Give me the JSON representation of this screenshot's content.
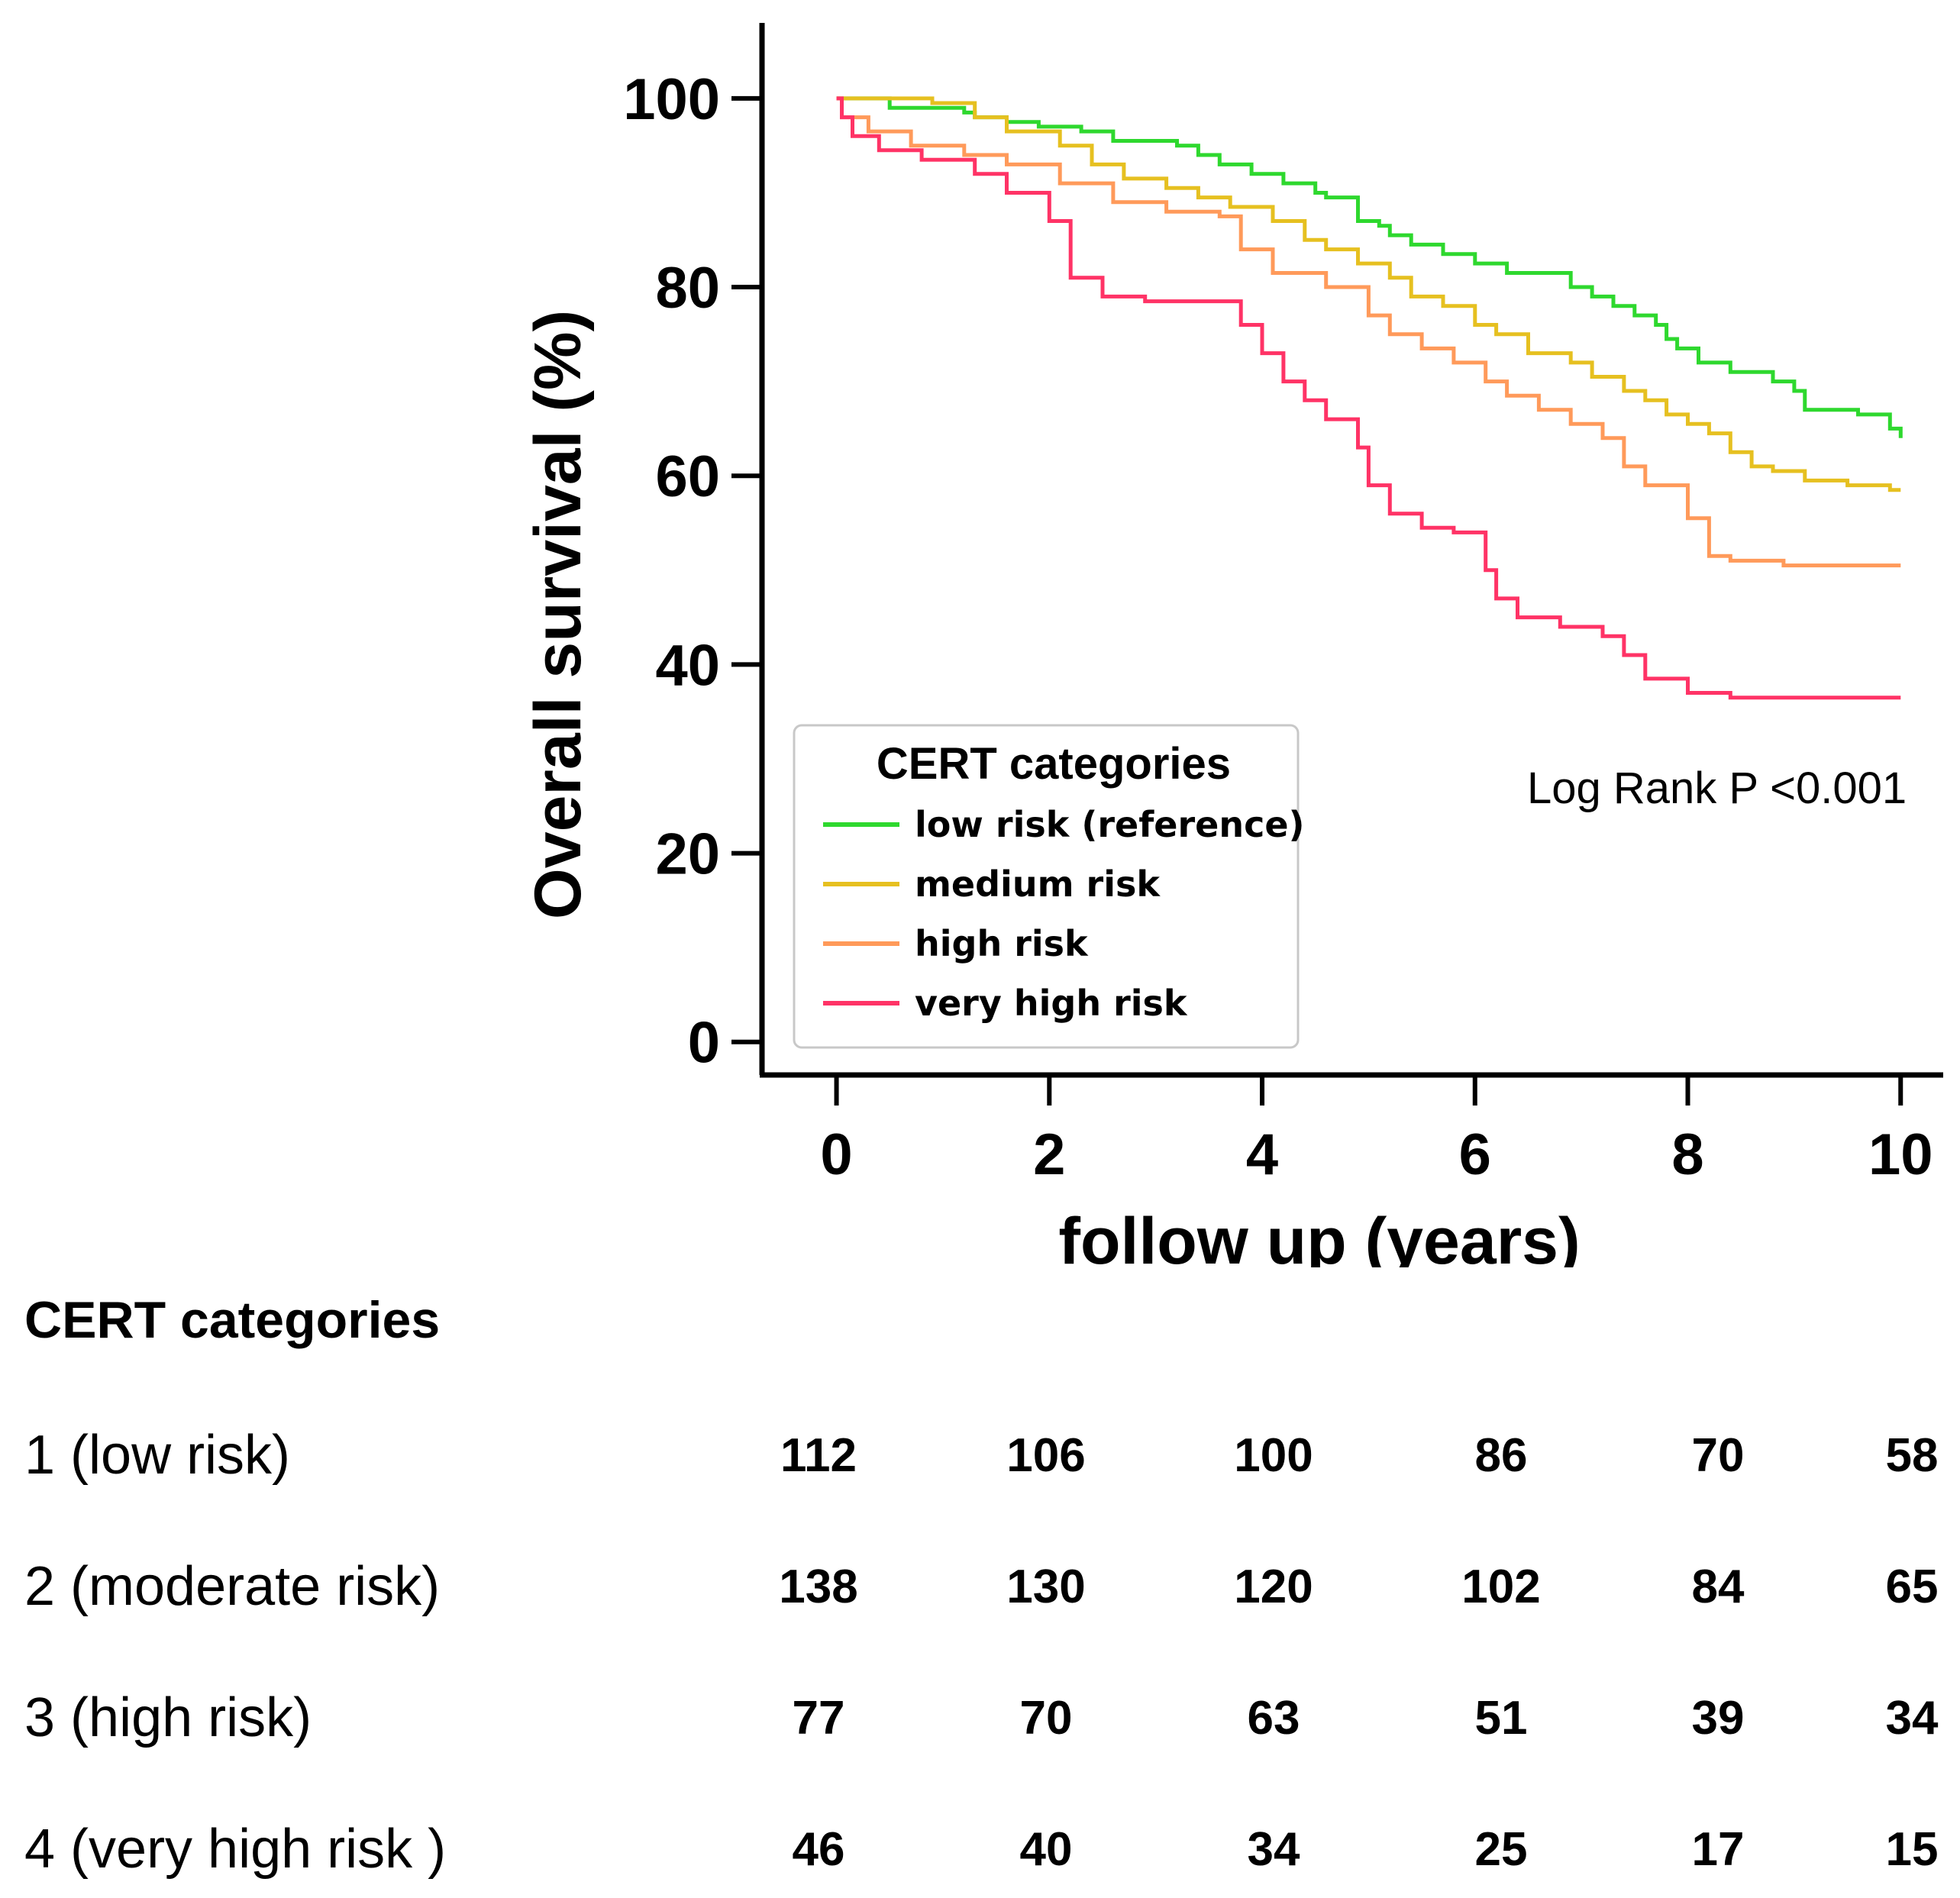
{
  "chart_data": {
    "type": "line",
    "xlabel": "follow up (years)",
    "ylabel": "Overall survival (%)",
    "xlim": [
      -0.7,
      10.4
    ],
    "ylim": [
      -3.5,
      108
    ],
    "xticks": [
      0,
      2,
      4,
      6,
      8,
      10
    ],
    "yticks": [
      0,
      20,
      40,
      60,
      80,
      100
    ],
    "grid": false,
    "legend_placement": "lower-center",
    "legend_title": "CERT categories",
    "annotation": "Log Rank P <0.001",
    "series": [
      {
        "name": "low risk (reference)",
        "color": "#2ed82e",
        "x": [
          0,
          0.2,
          0.4,
          0.5,
          1.2,
          1.3,
          1.6,
          1.9,
          2.3,
          2.6,
          3.2,
          3.4,
          3.6,
          3.9,
          4.2,
          4.5,
          4.6,
          4.9,
          5.1,
          5.2,
          5.4,
          5.7,
          6.0,
          6.3,
          6.9,
          7.1,
          7.3,
          7.5,
          7.7,
          7.8,
          7.9,
          8.1,
          8.4,
          8.8,
          9.0,
          9.1,
          9.6,
          9.9,
          10.0
        ],
        "y": [
          100,
          100,
          100,
          99,
          98.5,
          98,
          97.5,
          97,
          96.5,
          95.5,
          95,
          94,
          93,
          92,
          91,
          90,
          89.5,
          87,
          86.5,
          85.5,
          84.5,
          83.5,
          82.5,
          81.5,
          80,
          79,
          78,
          77,
          76,
          74.5,
          73.5,
          72,
          71,
          70,
          69,
          67,
          66.5,
          65,
          64
        ]
      },
      {
        "name": "medium risk",
        "color": "#e6c020",
        "x": [
          0,
          0.5,
          0.9,
          1.3,
          1.6,
          2.1,
          2.4,
          2.7,
          3.1,
          3.4,
          3.7,
          4.1,
          4.4,
          4.6,
          4.9,
          5.2,
          5.4,
          5.7,
          6.0,
          6.2,
          6.5,
          6.9,
          7.1,
          7.4,
          7.6,
          7.8,
          8.0,
          8.2,
          8.4,
          8.6,
          8.8,
          9.1,
          9.5,
          9.9,
          10.0
        ],
        "y": [
          100,
          100,
          99.5,
          98,
          96.5,
          95,
          93,
          91.5,
          90.5,
          89.5,
          88.5,
          87,
          85,
          84,
          82.5,
          81,
          79,
          78,
          76,
          75,
          73,
          72,
          70.5,
          69,
          68,
          66.5,
          65.5,
          64.5,
          62.5,
          61,
          60.5,
          59.5,
          59,
          58.5,
          58.5
        ]
      },
      {
        "name": "high risk",
        "color": "#ff9a5a",
        "x": [
          0,
          0.05,
          0.3,
          0.7,
          1.2,
          1.6,
          2.1,
          2.6,
          3.1,
          3.6,
          3.8,
          4.1,
          4.6,
          5.0,
          5.2,
          5.5,
          5.8,
          6.1,
          6.3,
          6.6,
          6.9,
          7.2,
          7.4,
          7.6,
          8.0,
          8.2,
          8.4,
          8.9,
          9.4,
          10.0
        ],
        "y": [
          100,
          98,
          96.5,
          95,
          94,
          93,
          91,
          89,
          88,
          87.5,
          84,
          81.5,
          80,
          77,
          75,
          73.5,
          72,
          70,
          68.5,
          67,
          65.5,
          64,
          61,
          59,
          55.5,
          51.5,
          51,
          50.5,
          50.5,
          50.5
        ]
      },
      {
        "name": "very high risk",
        "color": "#ff3366",
        "x": [
          0,
          0.05,
          0.15,
          0.4,
          0.8,
          1.3,
          1.6,
          2.0,
          2.2,
          2.5,
          2.9,
          3.8,
          4.0,
          4.2,
          4.4,
          4.6,
          4.9,
          5.0,
          5.2,
          5.5,
          5.8,
          6.1,
          6.2,
          6.4,
          6.8,
          7.2,
          7.4,
          7.6,
          8.0,
          8.4,
          9.0,
          10.0
        ],
        "y": [
          100,
          98,
          96,
          94.5,
          93.5,
          92,
          90,
          87,
          81,
          79,
          78.5,
          76,
          73,
          70,
          68,
          66,
          63,
          59,
          56,
          54.5,
          54,
          50,
          47,
          45,
          44,
          43,
          41,
          38.5,
          37,
          36.5,
          36.5,
          36.5
        ]
      }
    ]
  },
  "risk_table": {
    "heading": "CERT categories",
    "rows": [
      {
        "label": "1 (low risk)",
        "values": [
          "112",
          "106",
          "100",
          "86",
          "70",
          "58"
        ]
      },
      {
        "label": "2 (moderate risk)",
        "values": [
          "138",
          "130",
          "120",
          "102",
          "84",
          "65"
        ]
      },
      {
        "label": "3 (high risk)",
        "values": [
          "77",
          "70",
          "63",
          "51",
          "39",
          "34"
        ]
      },
      {
        "label": "4 (very high risk )",
        "values": [
          "46",
          "40",
          "34",
          "25",
          "17",
          "15"
        ]
      }
    ]
  }
}
